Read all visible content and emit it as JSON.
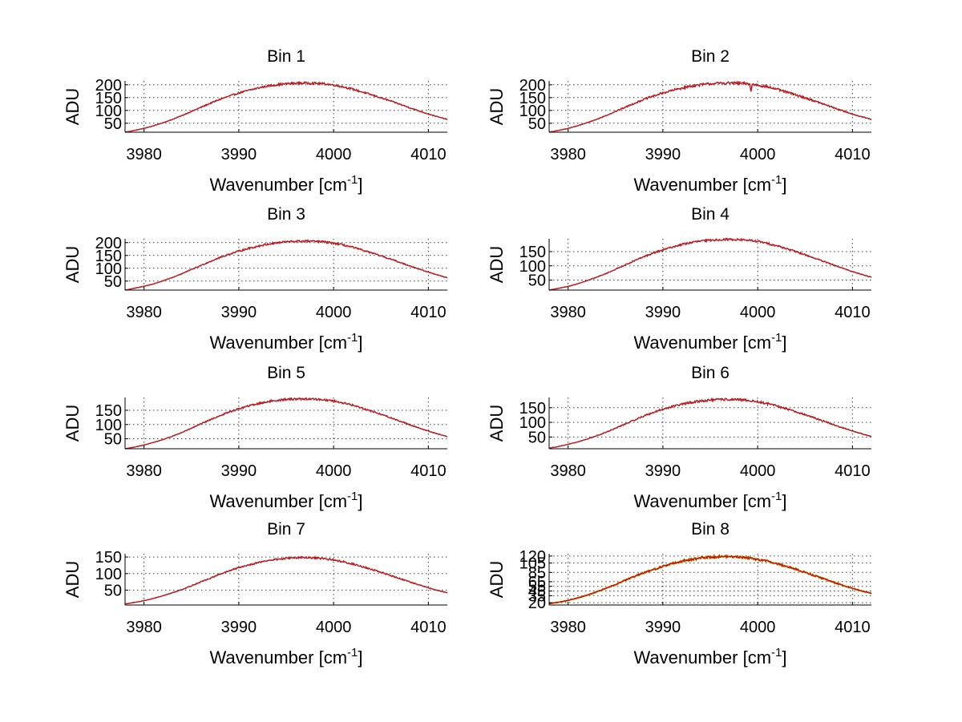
{
  "figure": {
    "background": "#ffffff",
    "line_colors": {
      "primary": "#e8141e",
      "secondary": "#3a0a0a",
      "tertiary": "#e8b400"
    }
  },
  "chart_data": [
    {
      "type": "line",
      "title": "Bin 1",
      "xlabel": "Wavenumber [cm",
      "xlabel_sup": "-1",
      "xlabel_close": "]",
      "ylabel": "ADU",
      "xlim": [
        3978,
        4012
      ],
      "ylim": [
        15,
        215
      ],
      "xticks": [
        3980,
        3990,
        4000,
        4010
      ],
      "yticks": [
        50,
        100,
        150,
        200
      ],
      "grid": true,
      "series": [
        {
          "name": "spectrum",
          "x_start": 3978,
          "x_end": 4012,
          "y": [
            15,
            22,
            30,
            40,
            52,
            65,
            80,
            96,
            112,
            128,
            143,
            156,
            168,
            178,
            187,
            195,
            200,
            204,
            206,
            207,
            206,
            204,
            199,
            192,
            183,
            172,
            161,
            149,
            137,
            124,
            111,
            98,
            86,
            75,
            65
          ],
          "noise": 4
        }
      ]
    },
    {
      "type": "line",
      "title": "Bin 2",
      "xlabel": "Wavenumber [cm",
      "xlabel_sup": "-1",
      "xlabel_close": "]",
      "ylabel": "ADU",
      "xlim": [
        3978,
        4012
      ],
      "ylim": [
        15,
        215
      ],
      "xticks": [
        3980,
        3990,
        4000,
        4010
      ],
      "yticks": [
        50,
        100,
        150,
        200
      ],
      "grid": true,
      "series": [
        {
          "name": "spectrum",
          "x_start": 3978,
          "x_end": 4012,
          "y": [
            15,
            22,
            30,
            40,
            52,
            65,
            80,
            96,
            112,
            128,
            143,
            156,
            168,
            178,
            187,
            195,
            200,
            204,
            206,
            207,
            206,
            204,
            199,
            192,
            183,
            172,
            161,
            149,
            137,
            124,
            111,
            98,
            86,
            75,
            65
          ],
          "noise": 5,
          "dip": {
            "x": 3999.3,
            "depth": 35
          }
        }
      ]
    },
    {
      "type": "line",
      "title": "Bin 3",
      "xlabel": "Wavenumber [cm",
      "xlabel_sup": "-1",
      "xlabel_close": "]",
      "ylabel": "ADU",
      "xlim": [
        3978,
        4012
      ],
      "ylim": [
        15,
        215
      ],
      "xticks": [
        3980,
        3990,
        4000,
        4010
      ],
      "yticks": [
        50,
        100,
        150,
        200
      ],
      "grid": true,
      "series": [
        {
          "name": "spectrum",
          "x_start": 3978,
          "x_end": 4012,
          "y": [
            15,
            22,
            30,
            39,
            51,
            64,
            79,
            95,
            111,
            127,
            142,
            155,
            167,
            177,
            186,
            194,
            199,
            203,
            205,
            206,
            205,
            203,
            198,
            191,
            182,
            171,
            160,
            148,
            136,
            123,
            110,
            97,
            85,
            74,
            63
          ],
          "noise": 4
        }
      ]
    },
    {
      "type": "line",
      "title": "Bin 4",
      "xlabel": "Wavenumber [cm",
      "xlabel_sup": "-1",
      "xlabel_close": "]",
      "ylabel": "ADU",
      "xlim": [
        3978,
        4012
      ],
      "ylim": [
        15,
        195
      ],
      "xticks": [
        3980,
        3990,
        4000,
        4010
      ],
      "yticks": [
        50,
        100,
        150
      ],
      "grid": true,
      "series": [
        {
          "name": "spectrum",
          "x_start": 3978,
          "x_end": 4012,
          "y": [
            15,
            21,
            28,
            37,
            48,
            60,
            73,
            88,
            103,
            118,
            132,
            145,
            156,
            166,
            175,
            182,
            187,
            190,
            192,
            193,
            192,
            190,
            186,
            179,
            171,
            161,
            150,
            139,
            127,
            115,
            103,
            91,
            80,
            70,
            60
          ],
          "noise": 3.5
        }
      ]
    },
    {
      "type": "line",
      "title": "Bin 5",
      "xlabel": "Wavenumber [cm",
      "xlabel_sup": "-1",
      "xlabel_close": "]",
      "ylabel": "ADU",
      "xlim": [
        3978,
        4012
      ],
      "ylim": [
        15,
        195
      ],
      "xticks": [
        3980,
        3990,
        4000,
        4010
      ],
      "yticks": [
        50,
        100,
        150
      ],
      "grid": true,
      "series": [
        {
          "name": "spectrum",
          "x_start": 3978,
          "x_end": 4012,
          "y": [
            15,
            21,
            28,
            37,
            47,
            59,
            72,
            87,
            102,
            117,
            131,
            144,
            155,
            165,
            173,
            180,
            185,
            188,
            190,
            190,
            189,
            187,
            183,
            176,
            168,
            158,
            147,
            136,
            124,
            112,
            100,
            88,
            77,
            67,
            57
          ],
          "noise": 3.5
        }
      ]
    },
    {
      "type": "line",
      "title": "Bin 6",
      "xlabel": "Wavenumber [cm",
      "xlabel_sup": "-1",
      "xlabel_close": "]",
      "ylabel": "ADU",
      "xlim": [
        3978,
        4012
      ],
      "ylim": [
        10,
        185
      ],
      "xticks": [
        3980,
        3990,
        4000,
        4010
      ],
      "yticks": [
        50,
        100,
        150
      ],
      "grid": true,
      "series": [
        {
          "name": "spectrum",
          "x_start": 3978,
          "x_end": 4012,
          "y": [
            12,
            18,
            25,
            33,
            43,
            54,
            66,
            80,
            94,
            108,
            122,
            134,
            145,
            154,
            162,
            168,
            173,
            176,
            178,
            178,
            177,
            175,
            170,
            164,
            156,
            147,
            137,
            126,
            115,
            104,
            92,
            81,
            71,
            61,
            52
          ],
          "noise": 4
        }
      ]
    },
    {
      "type": "line",
      "title": "Bin 7",
      "xlabel": "Wavenumber [cm",
      "xlabel_sup": "-1",
      "xlabel_close": "]",
      "ylabel": "ADU",
      "xlim": [
        3978,
        4012
      ],
      "ylim": [
        5,
        160
      ],
      "xticks": [
        3980,
        3990,
        4000,
        4010
      ],
      "yticks": [
        50,
        100,
        150
      ],
      "grid": true,
      "series": [
        {
          "name": "spectrum",
          "x_start": 3978,
          "x_end": 4012,
          "y": [
            8,
            13,
            18,
            25,
            33,
            42,
            52,
            63,
            75,
            86,
            98,
            108,
            118,
            126,
            133,
            139,
            143,
            146,
            148,
            148,
            147,
            145,
            141,
            136,
            129,
            121,
            113,
            104,
            94,
            85,
            75,
            66,
            57,
            49,
            42
          ],
          "noise": 3
        }
      ]
    },
    {
      "type": "line",
      "title": "Bin 8",
      "xlabel": "Wavenumber [cm",
      "xlabel_sup": "-1",
      "xlabel_close": "]",
      "ylabel": "ADU",
      "xlim": [
        3978,
        4012
      ],
      "ylim": [
        15,
        125
      ],
      "xticks": [
        3980,
        3990,
        4000,
        4010
      ],
      "yticks": [
        20,
        35,
        45,
        55,
        65,
        85,
        105,
        120
      ],
      "ytick_labels": [
        "20",
        "35",
        "45",
        "55",
        "65",
        "85",
        "105",
        "120"
      ],
      "grid": true,
      "series": [
        {
          "name": "spectrum",
          "x_start": 3978,
          "x_end": 4012,
          "y": [
            18,
            21,
            25,
            30,
            36,
            43,
            51,
            59,
            68,
            76,
            84,
            91,
            98,
            104,
            109,
            113,
            116,
            118,
            119,
            119,
            118,
            116,
            113,
            109,
            104,
            98,
            92,
            85,
            78,
            71,
            64,
            57,
            51,
            45,
            40
          ],
          "noise": 2.5,
          "multicolor": true
        }
      ]
    }
  ]
}
